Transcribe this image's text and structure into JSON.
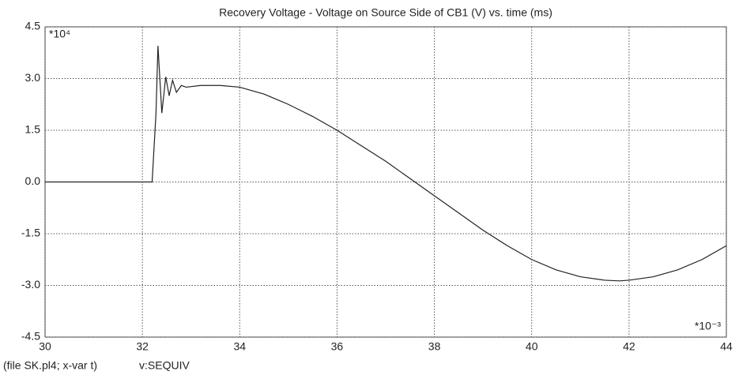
{
  "chart_data": {
    "type": "line",
    "title": "Recovery Voltage - Voltage on Source Side of CB1 (V) vs. time (ms)",
    "y_multiplier": "*10⁴",
    "x_multiplier": "*10⁻³",
    "footer_file": "(file SK.pl4; x-var t)",
    "footer_variable": "v:SEQUIV",
    "x": [
      30,
      32.2,
      32.28,
      32.32,
      32.4,
      32.48,
      32.55,
      32.62,
      32.7,
      32.8,
      32.9,
      33.2,
      33.6,
      34,
      34.5,
      35,
      35.5,
      36,
      36.5,
      37,
      37.5,
      38,
      38.5,
      39,
      39.5,
      40,
      40.5,
      41,
      41.5,
      41.8,
      42,
      42.5,
      43,
      43.5,
      44
    ],
    "series": [
      {
        "name": "v:SEQUIV",
        "color": "#222222",
        "values": [
          0,
          0,
          2.0,
          3.95,
          2.0,
          3.05,
          2.5,
          2.95,
          2.6,
          2.8,
          2.75,
          2.8,
          2.8,
          2.75,
          2.55,
          2.25,
          1.9,
          1.5,
          1.05,
          0.6,
          0.1,
          -0.4,
          -0.9,
          -1.4,
          -1.85,
          -2.25,
          -2.55,
          -2.75,
          -2.85,
          -2.87,
          -2.85,
          -2.75,
          -2.55,
          -2.25,
          -1.85
        ]
      }
    ],
    "xlim": [
      30,
      44
    ],
    "xticks": [
      30,
      32,
      34,
      36,
      38,
      40,
      42,
      44
    ],
    "ylim": [
      -4.5,
      4.5
    ],
    "yticks": [
      -4.5,
      {
        "value": -3,
        "label": "-3.0"
      },
      -1.5,
      {
        "value": 0,
        "label": "0.0"
      },
      1.5,
      {
        "value": 3,
        "label": "3.0"
      },
      4.5
    ],
    "grid": true
  }
}
